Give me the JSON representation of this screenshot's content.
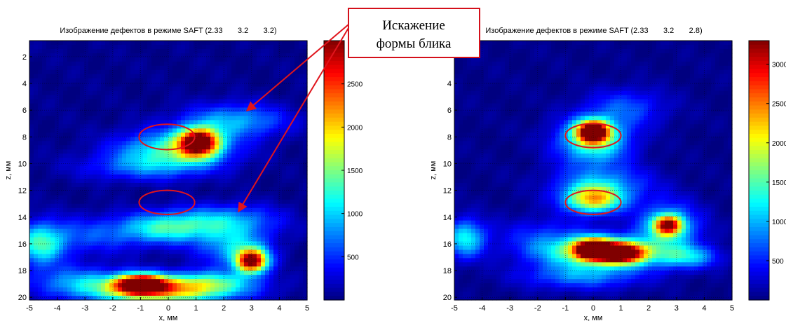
{
  "colors": {
    "ellipse": "#e0141c",
    "arrow": "#e0141c",
    "callout_border": "#d4101a",
    "background": "#ffffff"
  },
  "callout": {
    "line1": "Искажение",
    "line2": "формы блика"
  },
  "chart_data": [
    {
      "type": "heatmap",
      "title": "Изображение дефектов в режиме SAFT (2.33       3.2       3.2)",
      "xlabel": "x, мм",
      "ylabel": "z, мм",
      "xlim": [
        -5,
        5
      ],
      "ylim": [
        20.2,
        0.8
      ],
      "y_reversed": true,
      "x_ticks": [
        -5,
        -4,
        -3,
        -2,
        -1,
        0,
        1,
        2,
        3,
        4,
        5
      ],
      "y_ticks": [
        2,
        4,
        6,
        8,
        10,
        12,
        14,
        16,
        18,
        20
      ],
      "grid": true,
      "colormap": "jet",
      "colorbar": {
        "min": 0,
        "max": 3000,
        "ticks": [
          500,
          1000,
          1500,
          2000,
          2500
        ]
      },
      "blobs": [
        {
          "x": 1.1,
          "z": 8.4,
          "sx": 0.5,
          "sz": 0.7,
          "value": 3000
        },
        {
          "x": 0.2,
          "z": 9.0,
          "sx": 1.4,
          "sz": 1.0,
          "value": 1250
        },
        {
          "x": 2.4,
          "z": 6.8,
          "sx": 1.3,
          "sz": 0.9,
          "value": 850
        },
        {
          "x": -1.0,
          "z": 10.3,
          "sx": 1.6,
          "sz": 0.7,
          "value": 500
        },
        {
          "x": 0.0,
          "z": 14.8,
          "sx": 1.2,
          "sz": 0.8,
          "value": 1150
        },
        {
          "x": 2.2,
          "z": 14.2,
          "sx": 1.3,
          "sz": 0.8,
          "value": 750
        },
        {
          "x": -4.6,
          "z": 16.1,
          "sx": 0.6,
          "sz": 1.1,
          "value": 1100
        },
        {
          "x": 3.0,
          "z": 17.3,
          "sx": 0.4,
          "sz": 0.6,
          "value": 2900
        },
        {
          "x": 2.4,
          "z": 16.2,
          "sx": 0.9,
          "sz": 1.0,
          "value": 900
        },
        {
          "x": -1.0,
          "z": 19.0,
          "sx": 0.6,
          "sz": 0.5,
          "value": 3000
        },
        {
          "x": -0.2,
          "z": 19.5,
          "sx": 1.8,
          "sz": 0.7,
          "value": 1900
        },
        {
          "x": -3.2,
          "z": 18.8,
          "sx": 1.2,
          "sz": 0.8,
          "value": 700
        },
        {
          "x": 1.5,
          "z": 18.8,
          "sx": 1.2,
          "sz": 0.6,
          "value": 800
        },
        {
          "x": -3.0,
          "z": 15.4,
          "sx": 1.5,
          "sz": 1.0,
          "value": 500
        }
      ],
      "ellipses": [
        {
          "cx": -0.05,
          "cz": 8.0,
          "rx": 1.0,
          "rz": 0.95
        },
        {
          "cx": -0.05,
          "cz": 12.9,
          "rx": 1.0,
          "rz": 0.9
        }
      ]
    },
    {
      "type": "heatmap",
      "title": "Изображение дефектов в режиме SAFT (2.33       3.2       2.8)",
      "xlabel": "x, мм",
      "ylabel": "z, мм",
      "xlim": [
        -5,
        5
      ],
      "ylim": [
        20.2,
        0.8
      ],
      "y_reversed": true,
      "x_ticks": [
        -5,
        -4,
        -3,
        -2,
        -1,
        0,
        1,
        2,
        3,
        4,
        5
      ],
      "y_ticks": [
        4,
        6,
        8,
        10,
        12,
        14,
        16,
        18,
        20
      ],
      "grid": true,
      "colormap": "jet",
      "colorbar": {
        "min": 0,
        "max": 3300,
        "ticks": [
          500,
          1000,
          1500,
          2000,
          2500,
          3000
        ]
      },
      "blobs": [
        {
          "x": 0.0,
          "z": 7.6,
          "sx": 0.4,
          "sz": 0.55,
          "value": 3300
        },
        {
          "x": 0.0,
          "z": 8.3,
          "sx": 0.9,
          "sz": 1.2,
          "value": 1500
        },
        {
          "x": 0.0,
          "z": 12.7,
          "sx": 0.7,
          "sz": 0.7,
          "value": 1900
        },
        {
          "x": 0.3,
          "z": 11.6,
          "sx": 1.2,
          "sz": 1.0,
          "value": 900
        },
        {
          "x": 2.7,
          "z": 14.6,
          "sx": 0.35,
          "sz": 0.5,
          "value": 2500
        },
        {
          "x": 2.7,
          "z": 14.8,
          "sx": 0.8,
          "sz": 1.3,
          "value": 1100
        },
        {
          "x": 0.0,
          "z": 16.4,
          "sx": 0.45,
          "sz": 0.5,
          "value": 3300
        },
        {
          "x": 1.0,
          "z": 16.7,
          "sx": 0.55,
          "sz": 0.5,
          "value": 3000
        },
        {
          "x": 0.3,
          "z": 16.6,
          "sx": 1.5,
          "sz": 0.8,
          "value": 1900
        },
        {
          "x": -4.6,
          "z": 15.6,
          "sx": 0.5,
          "sz": 1.0,
          "value": 1200
        },
        {
          "x": 3.4,
          "z": 17.0,
          "sx": 0.8,
          "sz": 0.6,
          "value": 900
        },
        {
          "x": -0.4,
          "z": 18.4,
          "sx": 1.5,
          "sz": 0.7,
          "value": 800
        },
        {
          "x": 1.2,
          "z": 5.8,
          "sx": 1.0,
          "sz": 1.0,
          "value": 600
        },
        {
          "x": -1.8,
          "z": 15.4,
          "sx": 1.2,
          "sz": 1.0,
          "value": 450
        }
      ],
      "ellipses": [
        {
          "cx": 0.0,
          "cz": 7.9,
          "rx": 1.0,
          "rz": 0.9
        },
        {
          "cx": 0.0,
          "cz": 12.9,
          "rx": 1.0,
          "rz": 0.9
        }
      ]
    }
  ]
}
